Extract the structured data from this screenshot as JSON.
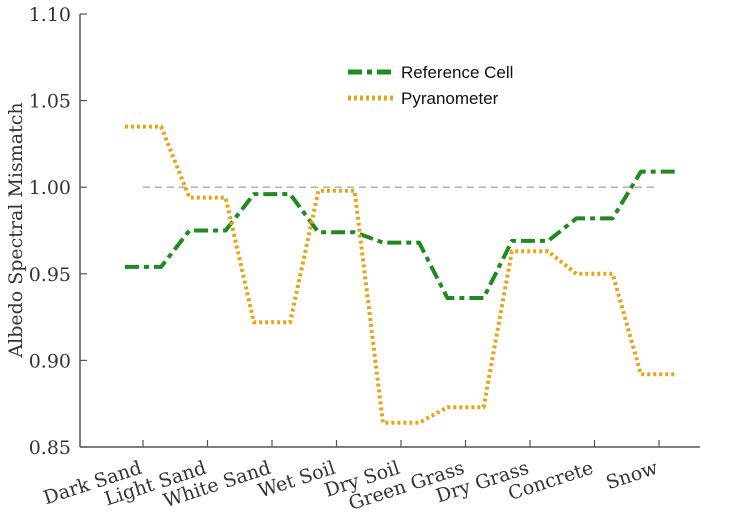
{
  "chart_data": {
    "type": "line",
    "categories": [
      "Dark Sand",
      "Light Sand",
      "White Sand",
      "Wet Soil",
      "Dry Soil",
      "Green Grass",
      "Dry Grass",
      "Concrete",
      "Snow"
    ],
    "series": [
      {
        "name": "Reference Cell",
        "values": [
          0.954,
          0.975,
          0.996,
          0.974,
          0.968,
          0.936,
          0.969,
          0.982,
          1.009
        ],
        "color": "#1f8a1f",
        "style": "dash-dot"
      },
      {
        "name": "Pyranometer",
        "values": [
          1.035,
          0.994,
          0.922,
          0.998,
          0.864,
          0.873,
          0.963,
          0.95,
          0.892
        ],
        "color": "#e8a317",
        "style": "dotted"
      }
    ],
    "reference_line": {
      "value": 1.0,
      "color": "#aaaaaa",
      "style": "dashed"
    },
    "ylabel": "Albedo Spectral Mismatch",
    "xlabel": "",
    "ylim": [
      0.85,
      1.1
    ],
    "yticks": [
      "0.85",
      "0.90",
      "0.95",
      "1.00",
      "1.05",
      "1.10"
    ],
    "grid": false,
    "legend_position": "top-right"
  }
}
